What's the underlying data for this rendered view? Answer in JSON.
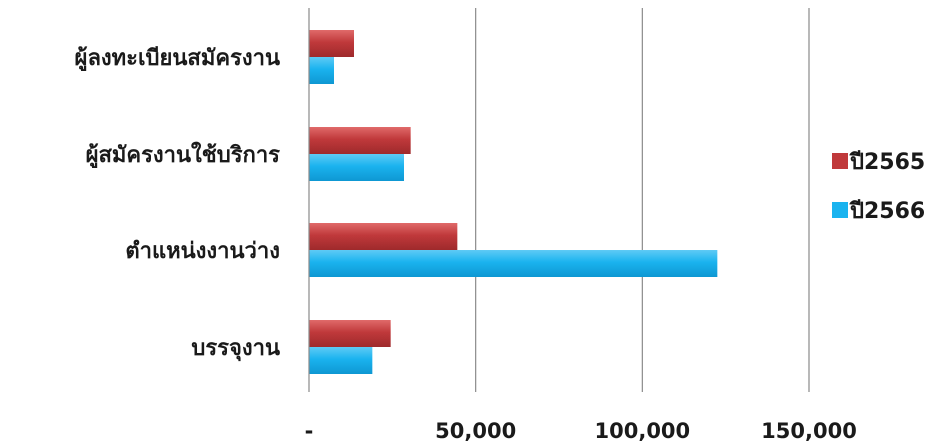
{
  "chart_data": {
    "type": "bar",
    "orientation": "horizontal",
    "categories": [
      "ผู้ลงทะเบียนสมัครงาน",
      "ผู้สมัครงานใช้บริการ",
      "ตำแหน่งงานว่าง",
      "บรรจุงาน"
    ],
    "series": [
      {
        "name": "ปี2565",
        "color": "#c0393b",
        "values": [
          13500,
          30500,
          44500,
          24500
        ]
      },
      {
        "name": "ปี2566",
        "color": "#1ab3ef",
        "values": [
          7500,
          28500,
          122500,
          19000
        ]
      }
    ],
    "x_ticks": [
      {
        "value": 0,
        "label": "-"
      },
      {
        "value": 50000,
        "label": "50,000"
      },
      {
        "value": 100000,
        "label": "100,000"
      },
      {
        "value": 150000,
        "label": "150,000"
      }
    ],
    "xlim": [
      0,
      150000
    ],
    "grid": "vertical",
    "legend_position": "right"
  }
}
